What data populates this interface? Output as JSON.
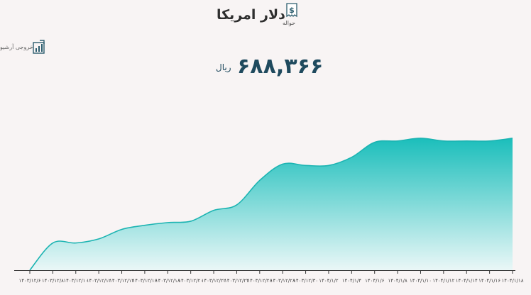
{
  "header": {
    "title": "دلار امریکا",
    "icon_caption": "حواله",
    "icon": "dollar-receipt-icon"
  },
  "archive": {
    "label": "خروجی آرشیو",
    "icon": "chart-export-icon"
  },
  "price": {
    "value": "۶۸۸,۳۶۶",
    "unit": "ریال"
  },
  "colors": {
    "area_top": "#1bbebb",
    "area_bottom": "#eaf7f7",
    "line": "#1cb4b2",
    "axis": "#333333",
    "title": "#2e2e2e",
    "price": "#1f4a5e"
  },
  "chart_data": {
    "type": "area",
    "title": "",
    "xlabel": "",
    "ylabel": "",
    "grid": false,
    "x_ticks": [
      "۱۴۰۳/۱۲/۶",
      "۱۴۰۳/۱۲/۸",
      "۱۴۰۳/۱۲/۱۰",
      "۱۴۰۳/۱۲/۱۲",
      "۱۴۰۳/۱۲/۱۴",
      "۱۴۰۳/۱۲/۱۶",
      "۱۴۰۳/۱۲/۱۸",
      "۱۴۰۳/۱۲/۲۰",
      "۱۴۰۳/۱۲/۲۲",
      "۱۴۰۳/۱۲/۲۴",
      "۱۴۰۳/۱۲/۲۶",
      "۱۴۰۳/۱۲/۲۸",
      "۱۴۰۳/۱۲/۳۰",
      "۱۴۰۴/۱/۲",
      "۱۴۰۴/۱/۴",
      "۱۴۰۴/۱/۶",
      "۱۴۰۴/۱/۸",
      "۱۴۰۴/۱/۱۰",
      "۱۴۰۴/۱/۱۲",
      "۱۴۰۴/۱/۱۴",
      "۱۴۰۴/۱/۱۶",
      "۱۴۰۴/۱/۱۸"
    ],
    "series": [
      {
        "values": [
          0,
          20,
          20,
          23,
          30,
          33,
          35,
          36,
          44,
          48,
          66,
          78,
          77,
          77,
          83,
          94,
          95,
          97,
          95,
          95,
          95,
          97
        ]
      }
    ],
    "ylim": [
      0,
      110
    ]
  }
}
